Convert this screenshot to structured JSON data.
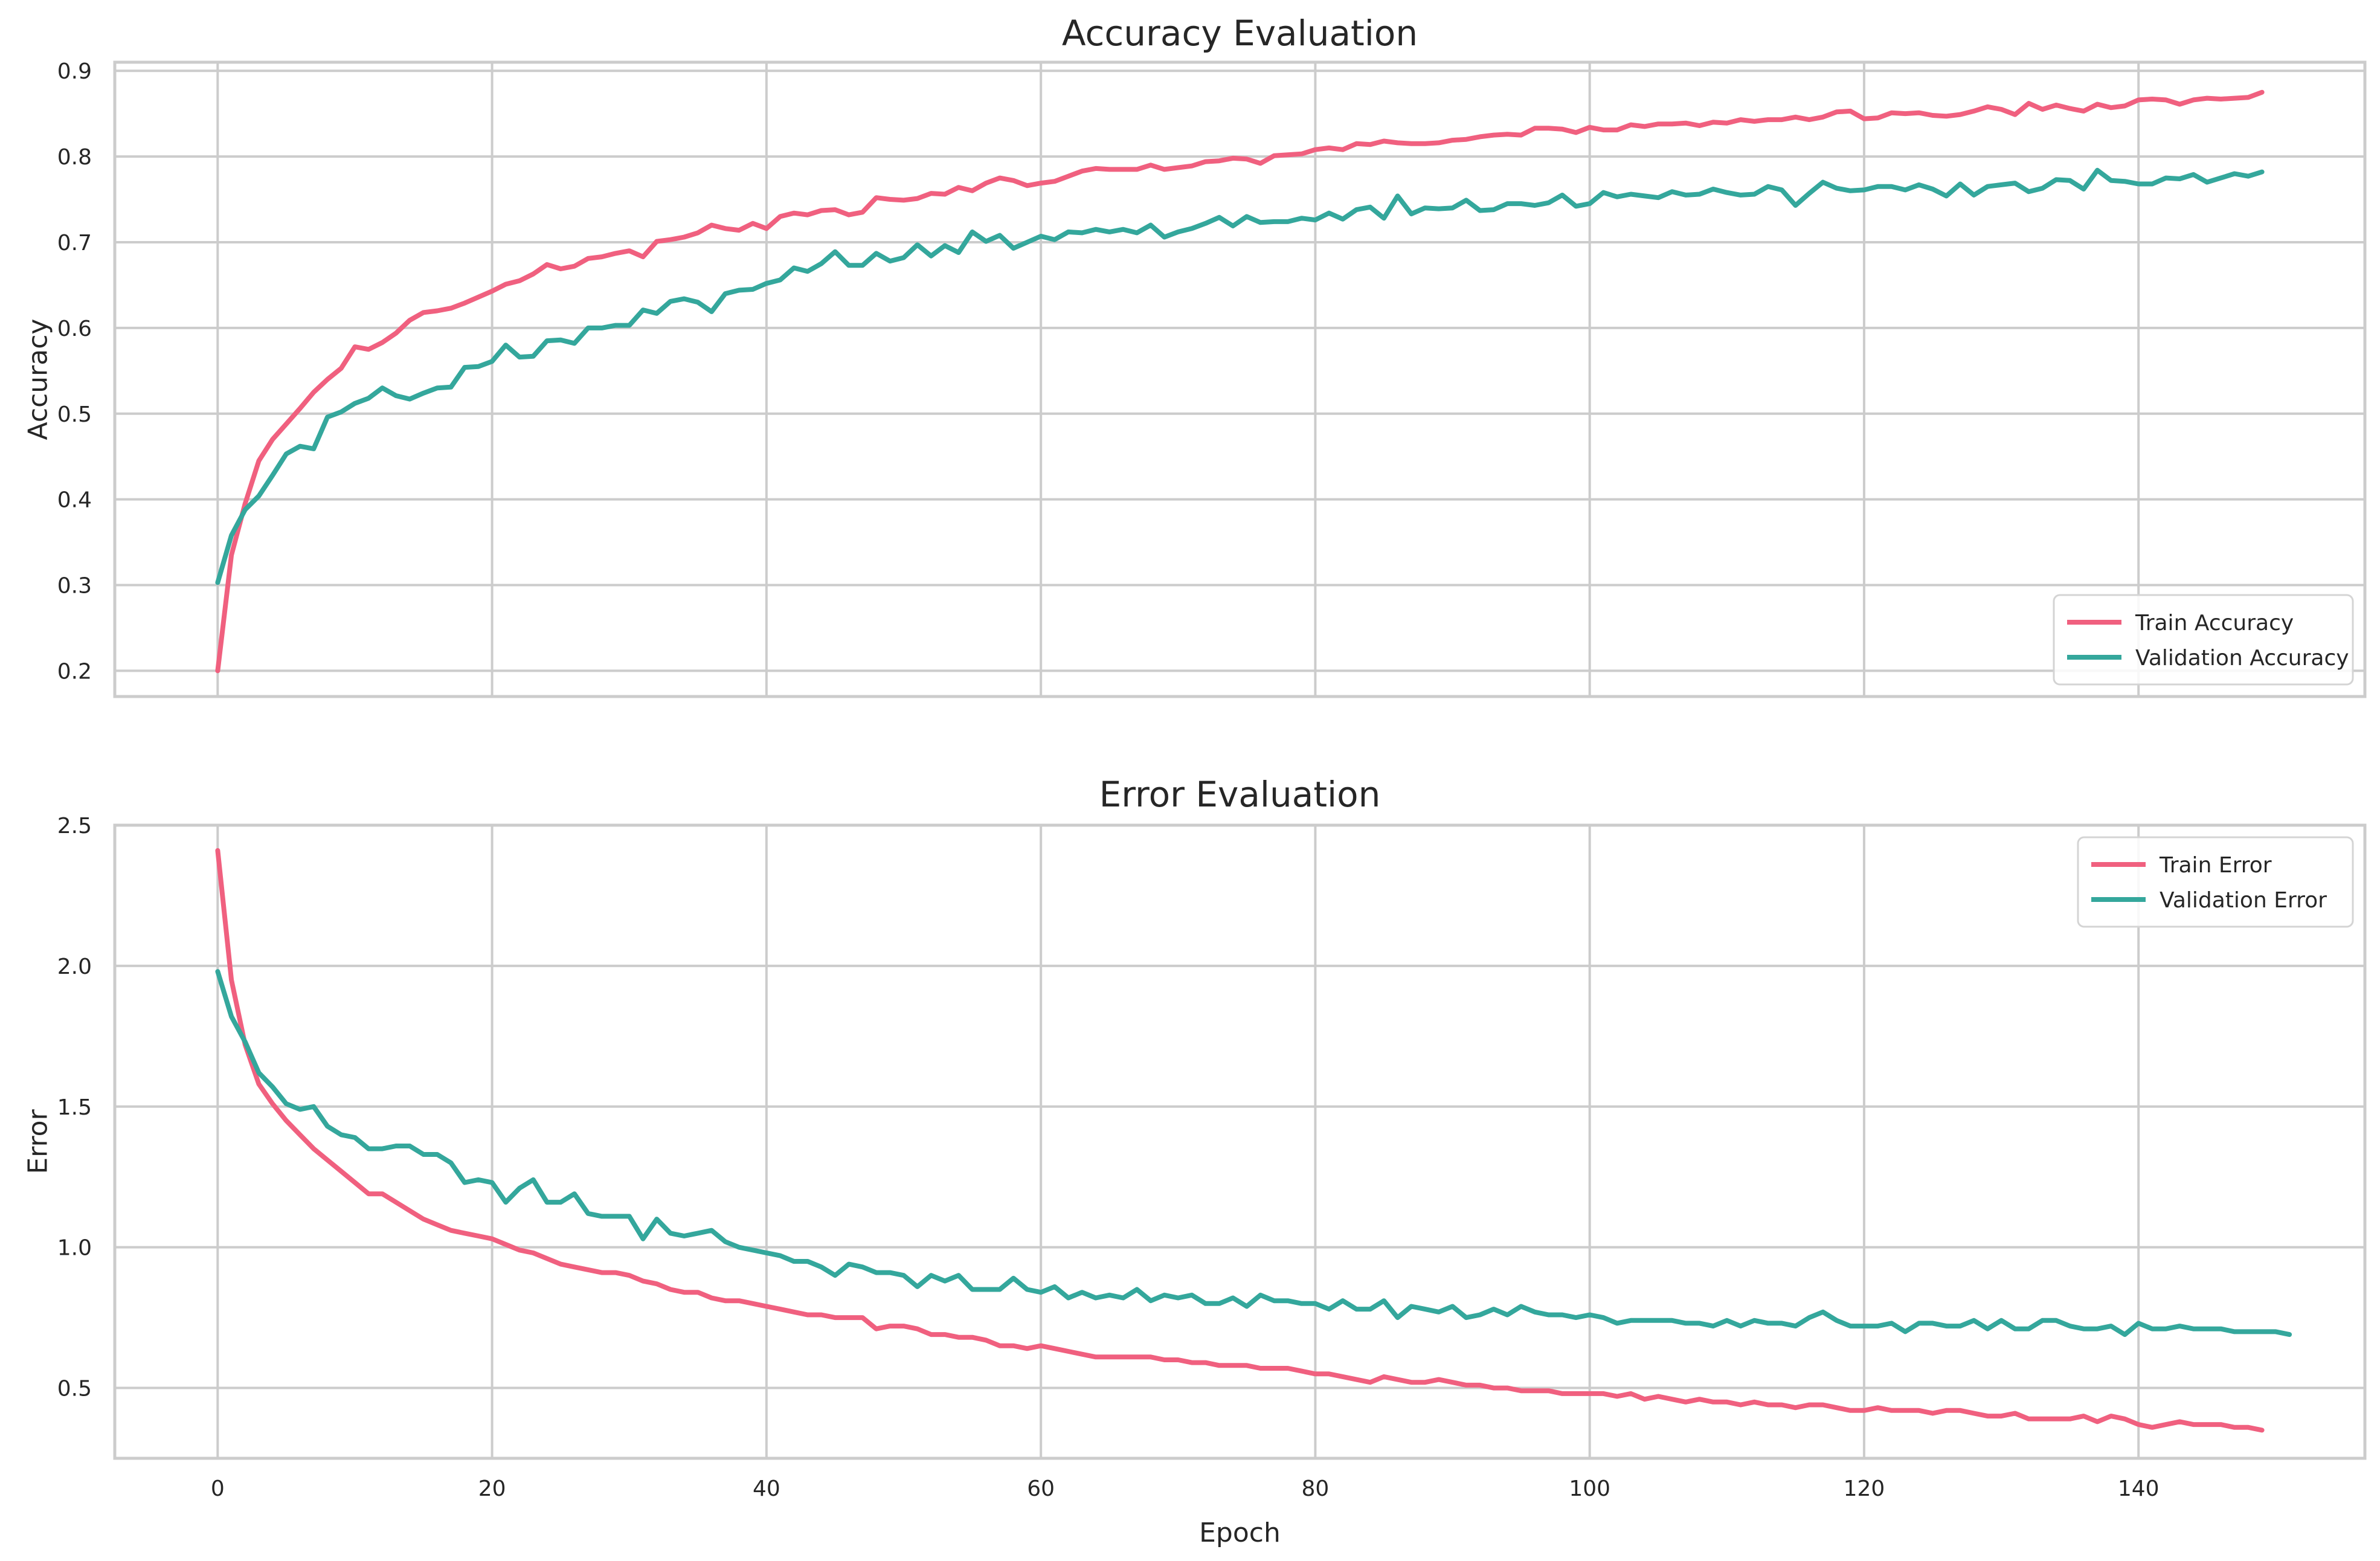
{
  "figure": {
    "xlabel": "Epoch"
  },
  "chart_data": [
    {
      "type": "line",
      "title": "Accuracy Evaluation",
      "xlabel": "",
      "ylabel": "Accuracy",
      "xlim": [
        -7.5,
        156.5
      ],
      "ylim": [
        0.17,
        0.91
      ],
      "xticks": [
        0,
        20,
        40,
        60,
        80,
        100,
        120,
        140
      ],
      "yticks": [
        0.2,
        0.3,
        0.4,
        0.5,
        0.6,
        0.7,
        0.8,
        0.9
      ],
      "ytick_labels": [
        "0.2",
        "0.3",
        "0.4",
        "0.5",
        "0.6",
        "0.7",
        "0.8",
        "0.9"
      ],
      "grid": true,
      "legend_position": "lower-right",
      "series": [
        {
          "name": "Train Accuracy",
          "color": "#f0607f",
          "x_start": 0,
          "x_step": 1,
          "values": [
            0.2,
            0.335,
            0.395,
            0.445,
            0.47,
            0.488,
            0.506,
            0.525,
            0.54,
            0.553,
            0.578,
            0.575,
            0.583,
            0.594,
            0.609,
            0.618,
            0.62,
            0.623,
            0.629,
            0.636,
            0.643,
            0.651,
            0.655,
            0.663,
            0.674,
            0.669,
            0.672,
            0.681,
            0.683,
            0.687,
            0.69,
            0.683,
            0.701,
            0.703,
            0.706,
            0.711,
            0.72,
            0.716,
            0.714,
            0.722,
            0.716,
            0.73,
            0.734,
            0.732,
            0.737,
            0.738,
            0.732,
            0.735,
            0.752,
            0.75,
            0.749,
            0.751,
            0.757,
            0.756,
            0.764,
            0.76,
            0.769,
            0.775,
            0.772,
            0.766,
            0.769,
            0.771,
            0.777,
            0.783,
            0.786,
            0.785,
            0.785,
            0.785,
            0.79,
            0.785,
            0.787,
            0.789,
            0.794,
            0.795,
            0.798,
            0.797,
            0.792,
            0.801,
            0.802,
            0.803,
            0.808,
            0.81,
            0.808,
            0.815,
            0.814,
            0.818,
            0.816,
            0.815,
            0.815,
            0.816,
            0.819,
            0.82,
            0.823,
            0.825,
            0.826,
            0.825,
            0.833,
            0.833,
            0.832,
            0.828,
            0.834,
            0.831,
            0.831,
            0.837,
            0.835,
            0.838,
            0.838,
            0.839,
            0.836,
            0.84,
            0.839,
            0.843,
            0.841,
            0.843,
            0.843,
            0.846,
            0.843,
            0.846,
            0.852,
            0.853,
            0.844,
            0.845,
            0.851,
            0.85,
            0.851,
            0.848,
            0.847,
            0.849,
            0.853,
            0.858,
            0.855,
            0.849,
            0.862,
            0.855,
            0.86,
            0.856,
            0.853,
            0.861,
            0.857,
            0.859,
            0.866,
            0.867,
            0.866,
            0.861,
            0.866,
            0.868,
            0.867,
            0.868,
            0.869,
            0.875
          ]
        },
        {
          "name": "Validation Accuracy",
          "color": "#34a79c",
          "x_start": 0,
          "x_step": 1,
          "values": [
            0.303,
            0.358,
            0.388,
            0.404,
            0.428,
            0.453,
            0.462,
            0.459,
            0.496,
            0.502,
            0.512,
            0.518,
            0.53,
            0.521,
            0.517,
            0.524,
            0.53,
            0.531,
            0.554,
            0.555,
            0.561,
            0.58,
            0.566,
            0.567,
            0.585,
            0.586,
            0.582,
            0.6,
            0.6,
            0.603,
            0.603,
            0.621,
            0.617,
            0.631,
            0.634,
            0.63,
            0.619,
            0.64,
            0.644,
            0.645,
            0.652,
            0.656,
            0.67,
            0.666,
            0.675,
            0.689,
            0.673,
            0.673,
            0.687,
            0.678,
            0.682,
            0.697,
            0.684,
            0.696,
            0.688,
            0.712,
            0.701,
            0.708,
            0.693,
            0.7,
            0.707,
            0.703,
            0.712,
            0.711,
            0.715,
            0.712,
            0.715,
            0.711,
            0.72,
            0.706,
            0.712,
            0.716,
            0.722,
            0.729,
            0.719,
            0.73,
            0.723,
            0.724,
            0.724,
            0.728,
            0.726,
            0.734,
            0.727,
            0.738,
            0.741,
            0.728,
            0.754,
            0.733,
            0.74,
            0.739,
            0.74,
            0.749,
            0.737,
            0.738,
            0.745,
            0.745,
            0.743,
            0.746,
            0.755,
            0.742,
            0.745,
            0.758,
            0.753,
            0.756,
            0.754,
            0.752,
            0.759,
            0.755,
            0.756,
            0.762,
            0.758,
            0.755,
            0.756,
            0.765,
            0.761,
            0.743,
            0.757,
            0.77,
            0.763,
            0.76,
            0.761,
            0.765,
            0.765,
            0.761,
            0.767,
            0.762,
            0.754,
            0.768,
            0.755,
            0.765,
            0.767,
            0.769,
            0.759,
            0.763,
            0.773,
            0.772,
            0.762,
            0.784,
            0.772,
            0.771,
            0.768,
            0.768,
            0.775,
            0.774,
            0.779,
            0.77,
            0.775,
            0.78,
            0.777,
            0.782
          ]
        }
      ]
    },
    {
      "type": "line",
      "title": "Error Evaluation",
      "xlabel": "Epoch",
      "ylabel": "Error",
      "xlim": [
        -7.5,
        156.5
      ],
      "ylim": [
        0.25,
        2.5
      ],
      "xticks": [
        0,
        20,
        40,
        60,
        80,
        100,
        120,
        140
      ],
      "xtick_labels": [
        "0",
        "20",
        "40",
        "60",
        "80",
        "100",
        "120",
        "140"
      ],
      "yticks": [
        0.5,
        1.0,
        1.5,
        2.0,
        2.5
      ],
      "ytick_labels": [
        "0.5",
        "1.0",
        "1.5",
        "2.0",
        "2.5"
      ],
      "grid": true,
      "legend_position": "top-right",
      "series": [
        {
          "name": "Train Error",
          "color": "#f0607f",
          "x_start": 0,
          "x_step": 1,
          "values": [
            2.41,
            1.95,
            1.72,
            1.58,
            1.51,
            1.45,
            1.4,
            1.35,
            1.31,
            1.27,
            1.23,
            1.19,
            1.19,
            1.16,
            1.13,
            1.1,
            1.08,
            1.06,
            1.05,
            1.04,
            1.03,
            1.01,
            0.99,
            0.98,
            0.96,
            0.94,
            0.93,
            0.92,
            0.91,
            0.91,
            0.9,
            0.88,
            0.87,
            0.85,
            0.84,
            0.84,
            0.82,
            0.81,
            0.81,
            0.8,
            0.79,
            0.78,
            0.77,
            0.76,
            0.76,
            0.75,
            0.75,
            0.75,
            0.71,
            0.72,
            0.72,
            0.71,
            0.69,
            0.69,
            0.68,
            0.68,
            0.67,
            0.65,
            0.65,
            0.64,
            0.65,
            0.64,
            0.63,
            0.62,
            0.61,
            0.61,
            0.61,
            0.61,
            0.61,
            0.6,
            0.6,
            0.59,
            0.59,
            0.58,
            0.58,
            0.58,
            0.57,
            0.57,
            0.57,
            0.56,
            0.55,
            0.55,
            0.54,
            0.53,
            0.52,
            0.54,
            0.53,
            0.52,
            0.52,
            0.53,
            0.52,
            0.51,
            0.51,
            0.5,
            0.5,
            0.49,
            0.49,
            0.49,
            0.48,
            0.48,
            0.48,
            0.48,
            0.47,
            0.48,
            0.46,
            0.47,
            0.46,
            0.45,
            0.46,
            0.45,
            0.45,
            0.44,
            0.45,
            0.44,
            0.44,
            0.43,
            0.44,
            0.44,
            0.43,
            0.42,
            0.42,
            0.43,
            0.42,
            0.42,
            0.42,
            0.41,
            0.42,
            0.42,
            0.41,
            0.4,
            0.4,
            0.41,
            0.39,
            0.39,
            0.39,
            0.39,
            0.4,
            0.38,
            0.4,
            0.39,
            0.37,
            0.36,
            0.37,
            0.38,
            0.37,
            0.37,
            0.37,
            0.36,
            0.36,
            0.35
          ]
        },
        {
          "name": "Validation Error",
          "color": "#34a79c",
          "x_start": 0,
          "x_step": 1,
          "values": [
            1.98,
            1.82,
            1.73,
            1.62,
            1.57,
            1.51,
            1.49,
            1.5,
            1.43,
            1.4,
            1.39,
            1.35,
            1.35,
            1.36,
            1.36,
            1.33,
            1.33,
            1.3,
            1.23,
            1.24,
            1.23,
            1.16,
            1.21,
            1.24,
            1.16,
            1.16,
            1.19,
            1.12,
            1.11,
            1.11,
            1.11,
            1.03,
            1.1,
            1.05,
            1.04,
            1.05,
            1.06,
            1.02,
            1.0,
            0.99,
            0.98,
            0.97,
            0.95,
            0.95,
            0.93,
            0.9,
            0.94,
            0.93,
            0.91,
            0.91,
            0.9,
            0.86,
            0.9,
            0.88,
            0.9,
            0.85,
            0.85,
            0.85,
            0.89,
            0.85,
            0.84,
            0.86,
            0.82,
            0.84,
            0.82,
            0.83,
            0.82,
            0.85,
            0.81,
            0.83,
            0.82,
            0.83,
            0.8,
            0.8,
            0.82,
            0.79,
            0.83,
            0.81,
            0.81,
            0.8,
            0.8,
            0.78,
            0.81,
            0.78,
            0.78,
            0.81,
            0.75,
            0.79,
            0.78,
            0.77,
            0.79,
            0.75,
            0.76,
            0.78,
            0.76,
            0.79,
            0.77,
            0.76,
            0.76,
            0.75,
            0.76,
            0.75,
            0.73,
            0.74,
            0.74,
            0.74,
            0.74,
            0.73,
            0.73,
            0.72,
            0.74,
            0.72,
            0.74,
            0.73,
            0.73,
            0.72,
            0.75,
            0.77,
            0.74,
            0.72,
            0.72,
            0.72,
            0.73,
            0.7,
            0.73,
            0.73,
            0.72,
            0.72,
            0.74,
            0.71,
            0.74,
            0.71,
            0.71,
            0.74,
            0.74,
            0.72,
            0.71,
            0.71,
            0.72,
            0.69,
            0.73,
            0.71,
            0.71,
            0.72,
            0.71,
            0.71,
            0.71,
            0.7,
            0.7,
            0.7,
            0.7,
            0.69
          ]
        }
      ]
    }
  ]
}
